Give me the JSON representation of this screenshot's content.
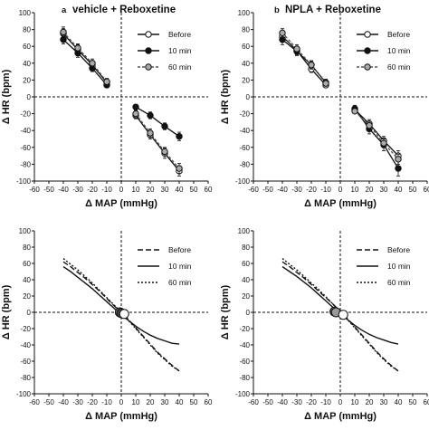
{
  "chart_data": [
    {
      "type": "line",
      "panel_label": "a",
      "title": "vehicle + Reboxetine",
      "xlabel": "Δ MAP (mmHg)",
      "ylabel": "Δ HR (bpm)",
      "xlim": [
        -60,
        60
      ],
      "ylim": [
        -100,
        100
      ],
      "xticks": [
        "-60",
        "-50",
        "-40",
        "-30",
        "-20",
        "-10",
        "0",
        "10",
        "20",
        "30",
        "40",
        "50",
        "60"
      ],
      "yticks": [
        "-100",
        "-80",
        "-60",
        "-40",
        "-20",
        "0",
        "20",
        "40",
        "60",
        "80",
        "100"
      ],
      "legend_position": "top-right",
      "series": [
        {
          "name": "Before",
          "marker": "open-circle",
          "line": "solid",
          "color": "#ffffff",
          "points": [
            [
              -40,
              75
            ],
            [
              -30,
              56
            ],
            [
              -20,
              38
            ],
            [
              -10,
              17
            ],
            [
              10,
              -22
            ],
            [
              20,
              -45
            ],
            [
              30,
              -67
            ],
            [
              40,
              -88
            ]
          ],
          "err": [
            6,
            6,
            5,
            4,
            4,
            5,
            6,
            6
          ]
        },
        {
          "name": "10 min",
          "marker": "filled-circle",
          "line": "solid",
          "color": "#111111",
          "points": [
            [
              -40,
              68
            ],
            [
              -30,
              52
            ],
            [
              -20,
              34
            ],
            [
              -10,
              14
            ],
            [
              10,
              -12
            ],
            [
              20,
              -22
            ],
            [
              30,
              -35
            ],
            [
              40,
              -47
            ]
          ],
          "err": [
            5,
            5,
            4,
            3,
            3,
            4,
            4,
            5
          ]
        },
        {
          "name": "60 min",
          "marker": "gray-circle",
          "line": "dashed",
          "color": "#aaaaaa",
          "points": [
            [
              -40,
              77
            ],
            [
              -30,
              58
            ],
            [
              -20,
              40
            ],
            [
              -10,
              18
            ],
            [
              10,
              -20
            ],
            [
              20,
              -43
            ],
            [
              30,
              -65
            ],
            [
              40,
              -85
            ]
          ],
          "err": [
            6,
            5,
            5,
            4,
            4,
            5,
            5,
            6
          ]
        }
      ]
    },
    {
      "type": "line",
      "panel_label": "b",
      "title": "NPLA + Reboxetine",
      "xlabel": "Δ MAP (mmHg)",
      "ylabel": "Δ HR (bpm)",
      "xlim": [
        -60,
        60
      ],
      "ylim": [
        -100,
        100
      ],
      "xticks": [
        "-60",
        "-50",
        "-40",
        "-30",
        "-20",
        "-10",
        "0",
        "10",
        "20",
        "30",
        "40",
        "50",
        "60"
      ],
      "yticks": [
        "-100",
        "-80",
        "-60",
        "-40",
        "-20",
        "0",
        "20",
        "40",
        "60",
        "80",
        "100"
      ],
      "legend_position": "top-right",
      "series": [
        {
          "name": "Before",
          "marker": "open-circle",
          "line": "solid",
          "color": "#ffffff",
          "points": [
            [
              -40,
              72
            ],
            [
              -30,
              55
            ],
            [
              -20,
              33
            ],
            [
              -10,
              14
            ],
            [
              10,
              -15
            ],
            [
              20,
              -32
            ],
            [
              30,
              -52
            ],
            [
              40,
              -70
            ]
          ],
          "err": [
            5,
            5,
            4,
            3,
            3,
            5,
            5,
            6
          ]
        },
        {
          "name": "10 min",
          "marker": "filled-circle",
          "line": "solid",
          "color": "#111111",
          "points": [
            [
              -40,
              68
            ],
            [
              -30,
              54
            ],
            [
              -20,
              38
            ],
            [
              -10,
              17
            ],
            [
              10,
              -14
            ],
            [
              20,
              -38
            ],
            [
              30,
              -57
            ],
            [
              40,
              -85
            ]
          ],
          "err": [
            6,
            5,
            5,
            4,
            4,
            6,
            7,
            9
          ]
        },
        {
          "name": "60 min",
          "marker": "gray-circle",
          "line": "dashed",
          "color": "#aaaaaa",
          "points": [
            [
              -40,
              76
            ],
            [
              -30,
              57
            ],
            [
              -20,
              38
            ],
            [
              -10,
              16
            ],
            [
              10,
              -17
            ],
            [
              20,
              -34
            ],
            [
              30,
              -55
            ],
            [
              40,
              -74
            ]
          ],
          "err": [
            5,
            5,
            4,
            3,
            3,
            5,
            5,
            6
          ]
        }
      ]
    },
    {
      "type": "line",
      "panel_label": "",
      "title": "",
      "xlabel": "Δ MAP (mmHg)",
      "ylabel": "Δ HR (bpm)",
      "xlim": [
        -60,
        60
      ],
      "ylim": [
        -100,
        100
      ],
      "xticks": [
        "-60",
        "-50",
        "-40",
        "-30",
        "-20",
        "-10",
        "0",
        "10",
        "20",
        "30",
        "40",
        "50",
        "60"
      ],
      "yticks": [
        "-100",
        "-80",
        "-60",
        "-40",
        "-20",
        "0",
        "20",
        "40",
        "60",
        "80",
        "100"
      ],
      "legend_position": "top-right",
      "series": [
        {
          "name": "Before",
          "line": "dashed-long",
          "color": "#111111",
          "x": [
            -40,
            -35,
            -30,
            -25,
            -20,
            -15,
            -10,
            -5,
            0,
            5,
            10,
            15,
            20,
            25,
            30,
            35,
            40
          ],
          "y": [
            62,
            56,
            49,
            42,
            34,
            26,
            17,
            8,
            0,
            -9,
            -19,
            -29,
            -39,
            -49,
            -57,
            -65,
            -72
          ]
        },
        {
          "name": "10 min",
          "line": "solid",
          "color": "#111111",
          "x": [
            -40,
            -35,
            -30,
            -25,
            -20,
            -15,
            -10,
            -5,
            0,
            5,
            10,
            15,
            20,
            25,
            30,
            35,
            40
          ],
          "y": [
            56,
            50,
            43,
            36,
            29,
            21,
            13,
            5,
            -3,
            -10,
            -17,
            -23,
            -28,
            -32,
            -35,
            -38,
            -39
          ]
        },
        {
          "name": "60 min",
          "line": "dotted",
          "color": "#111111",
          "x": [
            -40,
            -35,
            -30,
            -25,
            -20,
            -15,
            -10,
            -5,
            0,
            5,
            10,
            15,
            20,
            25,
            30,
            35,
            40
          ],
          "y": [
            66,
            59,
            52,
            44,
            36,
            27,
            18,
            9,
            0,
            -10,
            -20,
            -30,
            -40,
            -50,
            -58,
            -66,
            -72
          ]
        }
      ],
      "midpoints": [
        {
          "x": -1,
          "y": 0,
          "fill": "#888888"
        },
        {
          "x": 0,
          "y": -1,
          "fill": "#444444"
        },
        {
          "x": 2,
          "y": -2,
          "fill": "#ffffff"
        }
      ]
    },
    {
      "type": "line",
      "panel_label": "",
      "title": "",
      "xlabel": "Δ MAP (mmHg)",
      "ylabel": "Δ HR (bpm)",
      "xlim": [
        -60,
        60
      ],
      "ylim": [
        -100,
        100
      ],
      "xticks": [
        "-60",
        "-50",
        "-40",
        "-30",
        "-20",
        "-10",
        "0",
        "10",
        "20",
        "30",
        "40",
        "50",
        "60"
      ],
      "yticks": [
        "-100",
        "-80",
        "-60",
        "-40",
        "-20",
        "0",
        "20",
        "40",
        "60",
        "80",
        "100"
      ],
      "legend_position": "top-right",
      "series": [
        {
          "name": "Before",
          "line": "dashed-long",
          "color": "#111111",
          "x": [
            -40,
            -35,
            -30,
            -25,
            -20,
            -15,
            -10,
            -5,
            0,
            5,
            10,
            15,
            20,
            25,
            30,
            35,
            40
          ],
          "y": [
            62,
            56,
            49,
            42,
            34,
            26,
            18,
            10,
            1,
            -8,
            -18,
            -28,
            -38,
            -48,
            -57,
            -65,
            -72
          ]
        },
        {
          "name": "10 min",
          "line": "solid",
          "color": "#111111",
          "x": [
            -40,
            -35,
            -30,
            -25,
            -20,
            -15,
            -10,
            -5,
            0,
            5,
            10,
            15,
            20,
            25,
            30,
            35,
            40
          ],
          "y": [
            56,
            50,
            44,
            37,
            30,
            22,
            14,
            6,
            -2,
            -9,
            -16,
            -22,
            -27,
            -31,
            -34,
            -37,
            -39
          ]
        },
        {
          "name": "60 min",
          "line": "dotted",
          "color": "#111111",
          "x": [
            -40,
            -35,
            -30,
            -25,
            -20,
            -15,
            -10,
            -5,
            0,
            5,
            10,
            15,
            20,
            25,
            30,
            35,
            40
          ],
          "y": [
            66,
            59,
            52,
            44,
            36,
            28,
            19,
            10,
            1,
            -9,
            -19,
            -29,
            -39,
            -49,
            -58,
            -66,
            -72
          ]
        }
      ],
      "midpoints": [
        {
          "x": -4,
          "y": 1,
          "fill": "#555555"
        },
        {
          "x": -3,
          "y": 0,
          "fill": "#999999"
        },
        {
          "x": 2,
          "y": -3,
          "fill": "#ffffff"
        }
      ]
    }
  ]
}
